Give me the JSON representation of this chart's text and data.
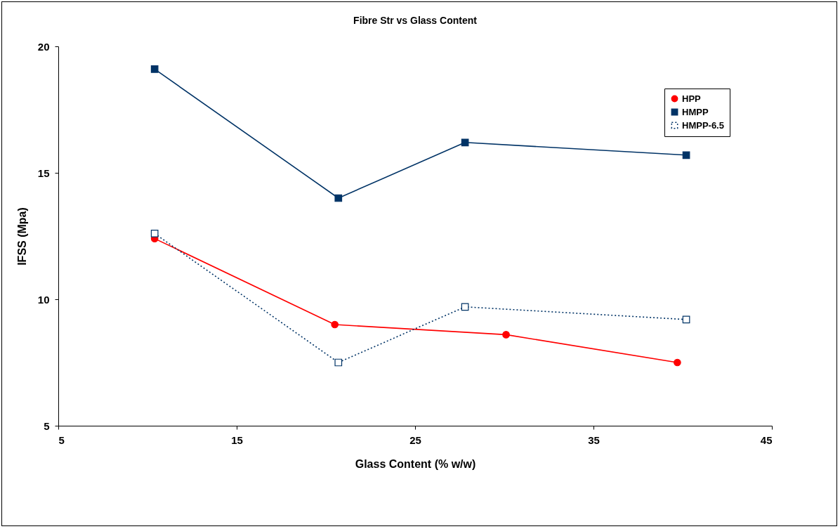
{
  "chart_data": {
    "type": "line",
    "title": "Fibre Str vs Glass Content",
    "xlabel": "Glass Content (% w/w)",
    "ylabel": "IFSS (Mpa)",
    "xlim": [
      5,
      45
    ],
    "xticks": [
      5,
      15,
      25,
      35,
      45
    ],
    "ylim": [
      5,
      20
    ],
    "yticks": [
      5,
      10,
      15,
      20
    ],
    "grid": false,
    "legend": "top right",
    "series": [
      {
        "name": "HPP",
        "color": "#ff0000",
        "marker": "circle",
        "line_style": "solid",
        "x": [
          10.4,
          20.5,
          30.1,
          39.7
        ],
        "values": [
          12.4,
          9.0,
          8.6,
          7.5
        ]
      },
      {
        "name": "HMPP",
        "color": "#003366",
        "marker": "square",
        "line_style": "solid",
        "x": [
          10.4,
          20.7,
          27.8,
          40.2
        ],
        "values": [
          19.1,
          14.0,
          16.2,
          15.7
        ]
      },
      {
        "name": "HMPP-6.5",
        "color": "#003366",
        "marker": "square",
        "line_style": "dotted",
        "x": [
          10.4,
          20.7,
          27.8,
          40.2
        ],
        "values": [
          12.6,
          7.5,
          9.7,
          9.2
        ]
      }
    ]
  }
}
